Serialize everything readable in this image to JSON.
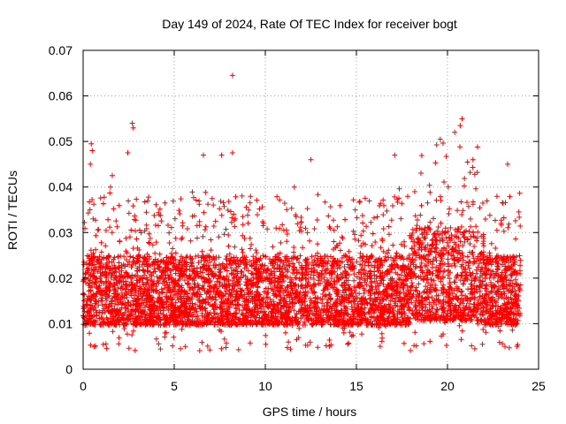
{
  "chart_data": {
    "type": "scatter",
    "title": "Day 149 of 2024, Rate Of TEC Index for receiver bogt",
    "xlabel": "GPS time / hours",
    "ylabel": "ROTI / TECUs",
    "xlim": [
      0,
      25
    ],
    "ylim": [
      0,
      0.07
    ],
    "xticks": [
      0,
      5,
      10,
      15,
      20,
      25
    ],
    "yticks": [
      0,
      0.01,
      0.02,
      0.03,
      0.04,
      0.05,
      0.06,
      0.07
    ],
    "xtick_labels": [
      "0",
      "5",
      "10",
      "15",
      "20",
      "25"
    ],
    "ytick_labels": [
      "0",
      "0.01",
      "0.02",
      "0.03",
      "0.04",
      "0.05",
      "0.06",
      "0.07"
    ],
    "grid": true,
    "marker": "+",
    "color": "#ff0000",
    "data_x_range": [
      0,
      24
    ],
    "typical_band": [
      0.007,
      0.025
    ],
    "series": [
      {
        "name": "ROTI",
        "note": "dense cloud of points; representative outliers listed",
        "outliers": [
          {
            "x": 0.45,
            "y": 0.0495
          },
          {
            "x": 0.5,
            "y": 0.048
          },
          {
            "x": 0.4,
            "y": 0.045
          },
          {
            "x": 1.6,
            "y": 0.0425
          },
          {
            "x": 2.45,
            "y": 0.0475
          },
          {
            "x": 2.7,
            "y": 0.054
          },
          {
            "x": 2.75,
            "y": 0.053
          },
          {
            "x": 8.2,
            "y": 0.0645
          },
          {
            "x": 8.2,
            "y": 0.0475
          },
          {
            "x": 6.6,
            "y": 0.047
          },
          {
            "x": 7.6,
            "y": 0.047
          },
          {
            "x": 12.5,
            "y": 0.046
          },
          {
            "x": 17.1,
            "y": 0.047
          },
          {
            "x": 19.6,
            "y": 0.0505
          },
          {
            "x": 20.4,
            "y": 0.052
          },
          {
            "x": 20.8,
            "y": 0.055
          },
          {
            "x": 20.7,
            "y": 0.0535
          },
          {
            "x": 21.4,
            "y": 0.046
          },
          {
            "x": 23.3,
            "y": 0.045
          }
        ]
      }
    ]
  }
}
